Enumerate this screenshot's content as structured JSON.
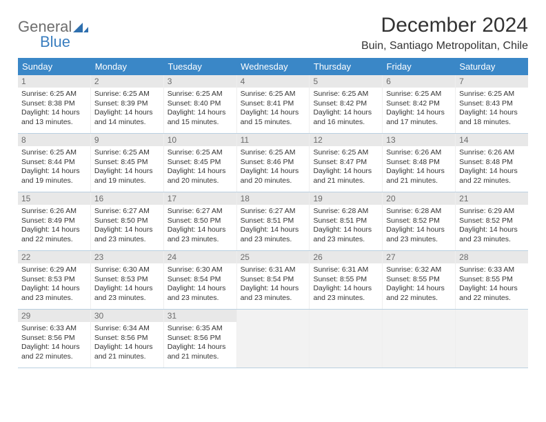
{
  "logo": {
    "general": "General",
    "blue": "Blue"
  },
  "title": "December 2024",
  "location": "Buin, Santiago Metropolitan, Chile",
  "colors": {
    "header_bg": "#3a87c7",
    "header_text": "#ffffff",
    "daynum_bg": "#e8e8e8",
    "daynum_text": "#6b6b6b",
    "rule": "#b9cfe0",
    "empty_bg": "#f2f2f2",
    "logo_gray": "#6d6d6d",
    "logo_blue": "#3a7ebf"
  },
  "dow": [
    "Sunday",
    "Monday",
    "Tuesday",
    "Wednesday",
    "Thursday",
    "Friday",
    "Saturday"
  ],
  "weeks": [
    [
      {
        "n": "1",
        "sr": "Sunrise: 6:25 AM",
        "ss": "Sunset: 8:38 PM",
        "d1": "Daylight: 14 hours",
        "d2": "and 13 minutes."
      },
      {
        "n": "2",
        "sr": "Sunrise: 6:25 AM",
        "ss": "Sunset: 8:39 PM",
        "d1": "Daylight: 14 hours",
        "d2": "and 14 minutes."
      },
      {
        "n": "3",
        "sr": "Sunrise: 6:25 AM",
        "ss": "Sunset: 8:40 PM",
        "d1": "Daylight: 14 hours",
        "d2": "and 15 minutes."
      },
      {
        "n": "4",
        "sr": "Sunrise: 6:25 AM",
        "ss": "Sunset: 8:41 PM",
        "d1": "Daylight: 14 hours",
        "d2": "and 15 minutes."
      },
      {
        "n": "5",
        "sr": "Sunrise: 6:25 AM",
        "ss": "Sunset: 8:42 PM",
        "d1": "Daylight: 14 hours",
        "d2": "and 16 minutes."
      },
      {
        "n": "6",
        "sr": "Sunrise: 6:25 AM",
        "ss": "Sunset: 8:42 PM",
        "d1": "Daylight: 14 hours",
        "d2": "and 17 minutes."
      },
      {
        "n": "7",
        "sr": "Sunrise: 6:25 AM",
        "ss": "Sunset: 8:43 PM",
        "d1": "Daylight: 14 hours",
        "d2": "and 18 minutes."
      }
    ],
    [
      {
        "n": "8",
        "sr": "Sunrise: 6:25 AM",
        "ss": "Sunset: 8:44 PM",
        "d1": "Daylight: 14 hours",
        "d2": "and 19 minutes."
      },
      {
        "n": "9",
        "sr": "Sunrise: 6:25 AM",
        "ss": "Sunset: 8:45 PM",
        "d1": "Daylight: 14 hours",
        "d2": "and 19 minutes."
      },
      {
        "n": "10",
        "sr": "Sunrise: 6:25 AM",
        "ss": "Sunset: 8:45 PM",
        "d1": "Daylight: 14 hours",
        "d2": "and 20 minutes."
      },
      {
        "n": "11",
        "sr": "Sunrise: 6:25 AM",
        "ss": "Sunset: 8:46 PM",
        "d1": "Daylight: 14 hours",
        "d2": "and 20 minutes."
      },
      {
        "n": "12",
        "sr": "Sunrise: 6:25 AM",
        "ss": "Sunset: 8:47 PM",
        "d1": "Daylight: 14 hours",
        "d2": "and 21 minutes."
      },
      {
        "n": "13",
        "sr": "Sunrise: 6:26 AM",
        "ss": "Sunset: 8:48 PM",
        "d1": "Daylight: 14 hours",
        "d2": "and 21 minutes."
      },
      {
        "n": "14",
        "sr": "Sunrise: 6:26 AM",
        "ss": "Sunset: 8:48 PM",
        "d1": "Daylight: 14 hours",
        "d2": "and 22 minutes."
      }
    ],
    [
      {
        "n": "15",
        "sr": "Sunrise: 6:26 AM",
        "ss": "Sunset: 8:49 PM",
        "d1": "Daylight: 14 hours",
        "d2": "and 22 minutes."
      },
      {
        "n": "16",
        "sr": "Sunrise: 6:27 AM",
        "ss": "Sunset: 8:50 PM",
        "d1": "Daylight: 14 hours",
        "d2": "and 23 minutes."
      },
      {
        "n": "17",
        "sr": "Sunrise: 6:27 AM",
        "ss": "Sunset: 8:50 PM",
        "d1": "Daylight: 14 hours",
        "d2": "and 23 minutes."
      },
      {
        "n": "18",
        "sr": "Sunrise: 6:27 AM",
        "ss": "Sunset: 8:51 PM",
        "d1": "Daylight: 14 hours",
        "d2": "and 23 minutes."
      },
      {
        "n": "19",
        "sr": "Sunrise: 6:28 AM",
        "ss": "Sunset: 8:51 PM",
        "d1": "Daylight: 14 hours",
        "d2": "and 23 minutes."
      },
      {
        "n": "20",
        "sr": "Sunrise: 6:28 AM",
        "ss": "Sunset: 8:52 PM",
        "d1": "Daylight: 14 hours",
        "d2": "and 23 minutes."
      },
      {
        "n": "21",
        "sr": "Sunrise: 6:29 AM",
        "ss": "Sunset: 8:52 PM",
        "d1": "Daylight: 14 hours",
        "d2": "and 23 minutes."
      }
    ],
    [
      {
        "n": "22",
        "sr": "Sunrise: 6:29 AM",
        "ss": "Sunset: 8:53 PM",
        "d1": "Daylight: 14 hours",
        "d2": "and 23 minutes."
      },
      {
        "n": "23",
        "sr": "Sunrise: 6:30 AM",
        "ss": "Sunset: 8:53 PM",
        "d1": "Daylight: 14 hours",
        "d2": "and 23 minutes."
      },
      {
        "n": "24",
        "sr": "Sunrise: 6:30 AM",
        "ss": "Sunset: 8:54 PM",
        "d1": "Daylight: 14 hours",
        "d2": "and 23 minutes."
      },
      {
        "n": "25",
        "sr": "Sunrise: 6:31 AM",
        "ss": "Sunset: 8:54 PM",
        "d1": "Daylight: 14 hours",
        "d2": "and 23 minutes."
      },
      {
        "n": "26",
        "sr": "Sunrise: 6:31 AM",
        "ss": "Sunset: 8:55 PM",
        "d1": "Daylight: 14 hours",
        "d2": "and 23 minutes."
      },
      {
        "n": "27",
        "sr": "Sunrise: 6:32 AM",
        "ss": "Sunset: 8:55 PM",
        "d1": "Daylight: 14 hours",
        "d2": "and 22 minutes."
      },
      {
        "n": "28",
        "sr": "Sunrise: 6:33 AM",
        "ss": "Sunset: 8:55 PM",
        "d1": "Daylight: 14 hours",
        "d2": "and 22 minutes."
      }
    ],
    [
      {
        "n": "29",
        "sr": "Sunrise: 6:33 AM",
        "ss": "Sunset: 8:56 PM",
        "d1": "Daylight: 14 hours",
        "d2": "and 22 minutes."
      },
      {
        "n": "30",
        "sr": "Sunrise: 6:34 AM",
        "ss": "Sunset: 8:56 PM",
        "d1": "Daylight: 14 hours",
        "d2": "and 21 minutes."
      },
      {
        "n": "31",
        "sr": "Sunrise: 6:35 AM",
        "ss": "Sunset: 8:56 PM",
        "d1": "Daylight: 14 hours",
        "d2": "and 21 minutes."
      },
      null,
      null,
      null,
      null
    ]
  ]
}
